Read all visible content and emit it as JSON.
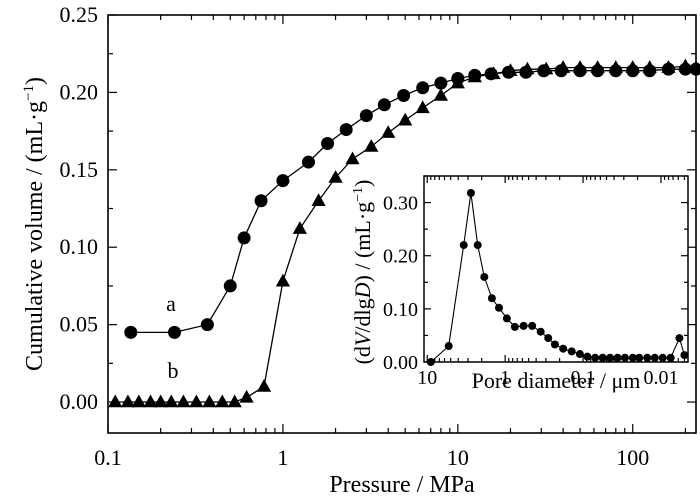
{
  "chart_data": [
    {
      "type": "line",
      "xscale": "log",
      "xlabel": "Pressure / MPa",
      "ylabel": "Cumulative volume / (mL·g⁻¹)",
      "xlim": [
        0.1,
        230
      ],
      "ylim": [
        -0.02,
        0.25
      ],
      "xticks": [
        0.1,
        1,
        10,
        100
      ],
      "xtick_labels": [
        "0.1",
        "1",
        "10",
        "100"
      ],
      "yticks": [
        0.0,
        0.05,
        0.1,
        0.15,
        0.2,
        0.25
      ],
      "ytick_labels": [
        "0.00",
        "0.05",
        "0.10",
        "0.15",
        "0.20",
        "0.25"
      ],
      "series": [
        {
          "name": "a",
          "marker": "circle",
          "x": [
            0.135,
            0.24,
            0.37,
            0.5,
            0.6,
            0.75,
            1.0,
            1.4,
            1.8,
            2.3,
            3.0,
            3.8,
            4.9,
            6.3,
            8.0,
            10,
            12.5,
            15.5,
            19.5,
            24.5,
            31,
            39,
            50,
            63,
            80,
            100,
            125,
            160,
            200,
            230
          ],
          "y": [
            0.045,
            0.045,
            0.05,
            0.075,
            0.106,
            0.13,
            0.143,
            0.155,
            0.167,
            0.176,
            0.185,
            0.192,
            0.198,
            0.203,
            0.206,
            0.209,
            0.211,
            0.212,
            0.213,
            0.213,
            0.214,
            0.214,
            0.214,
            0.214,
            0.214,
            0.214,
            0.214,
            0.215,
            0.215,
            0.215
          ]
        },
        {
          "name": "b",
          "marker": "triangle",
          "x": [
            0.11,
            0.13,
            0.15,
            0.175,
            0.2,
            0.23,
            0.27,
            0.32,
            0.38,
            0.45,
            0.53,
            0.62,
            0.78,
            1.0,
            1.25,
            1.6,
            2.0,
            2.5,
            3.2,
            4.0,
            5.0,
            6.3,
            8.0,
            10,
            12.5,
            16,
            20,
            25,
            32,
            40,
            50,
            63,
            80,
            100,
            125,
            160,
            200,
            230
          ],
          "y": [
            0.0,
            0.0,
            0.0,
            0.0,
            0.0,
            0.0,
            0.0,
            0.0,
            0.0,
            0.0,
            0.0,
            0.003,
            0.01,
            0.078,
            0.112,
            0.13,
            0.145,
            0.157,
            0.165,
            0.174,
            0.182,
            0.19,
            0.198,
            0.206,
            0.21,
            0.212,
            0.214,
            0.215,
            0.215,
            0.216,
            0.216,
            0.216,
            0.216,
            0.216,
            0.216,
            0.216,
            0.217,
            0.216
          ]
        }
      ]
    },
    {
      "type": "line",
      "inset": true,
      "xscale": "log",
      "x_reversed": true,
      "xlabel": "Pore diameter / μm",
      "ylabel": "(dV/dlgD) / (mL·g⁻¹)",
      "xlim": [
        11,
        0.0045
      ],
      "ylim": [
        0,
        0.35
      ],
      "xticks": [
        10,
        1,
        0.1,
        0.01
      ],
      "xtick_labels": [
        "10",
        "1",
        "0.1",
        "0.01"
      ],
      "yticks": [
        0.0,
        0.1,
        0.2,
        0.3
      ],
      "ytick_labels": [
        "0.00",
        "0.10",
        "0.20",
        "0.30"
      ],
      "series": [
        {
          "marker": "circle",
          "x": [
            9,
            5.3,
            3.4,
            2.75,
            2.25,
            1.85,
            1.48,
            1.2,
            0.95,
            0.75,
            0.58,
            0.45,
            0.35,
            0.28,
            0.23,
            0.18,
            0.14,
            0.11,
            0.088,
            0.07,
            0.056,
            0.045,
            0.036,
            0.029,
            0.023,
            0.019,
            0.015,
            0.012,
            0.0095,
            0.0075,
            0.0058,
            0.005
          ],
          "y": [
            0.0,
            0.03,
            0.22,
            0.318,
            0.22,
            0.16,
            0.12,
            0.102,
            0.082,
            0.066,
            0.068,
            0.068,
            0.057,
            0.045,
            0.033,
            0.025,
            0.02,
            0.015,
            0.01,
            0.008,
            0.008,
            0.008,
            0.008,
            0.008,
            0.008,
            0.008,
            0.008,
            0.008,
            0.008,
            0.008,
            0.045,
            0.013
          ]
        }
      ]
    }
  ],
  "labels": {
    "series_a": "a",
    "series_b": "b",
    "main_ylabel_text": "Cumulative volume / (mL·g",
    "main_ylabel_exp": "−1",
    "main_ylabel_close": ")",
    "main_xlabel": "Pressure / MPa",
    "inset_xlabel": "Pore diameter / μm",
    "inset_ylabel_a": "(d",
    "inset_ylabel_V": "V",
    "inset_ylabel_b": "/dlg",
    "inset_ylabel_D": "D",
    "inset_ylabel_c": ") / (mL·g",
    "inset_ylabel_exp": "−1",
    "inset_ylabel_close": ")"
  },
  "colors": {
    "ink": "#000000",
    "background": "#ffffff"
  }
}
